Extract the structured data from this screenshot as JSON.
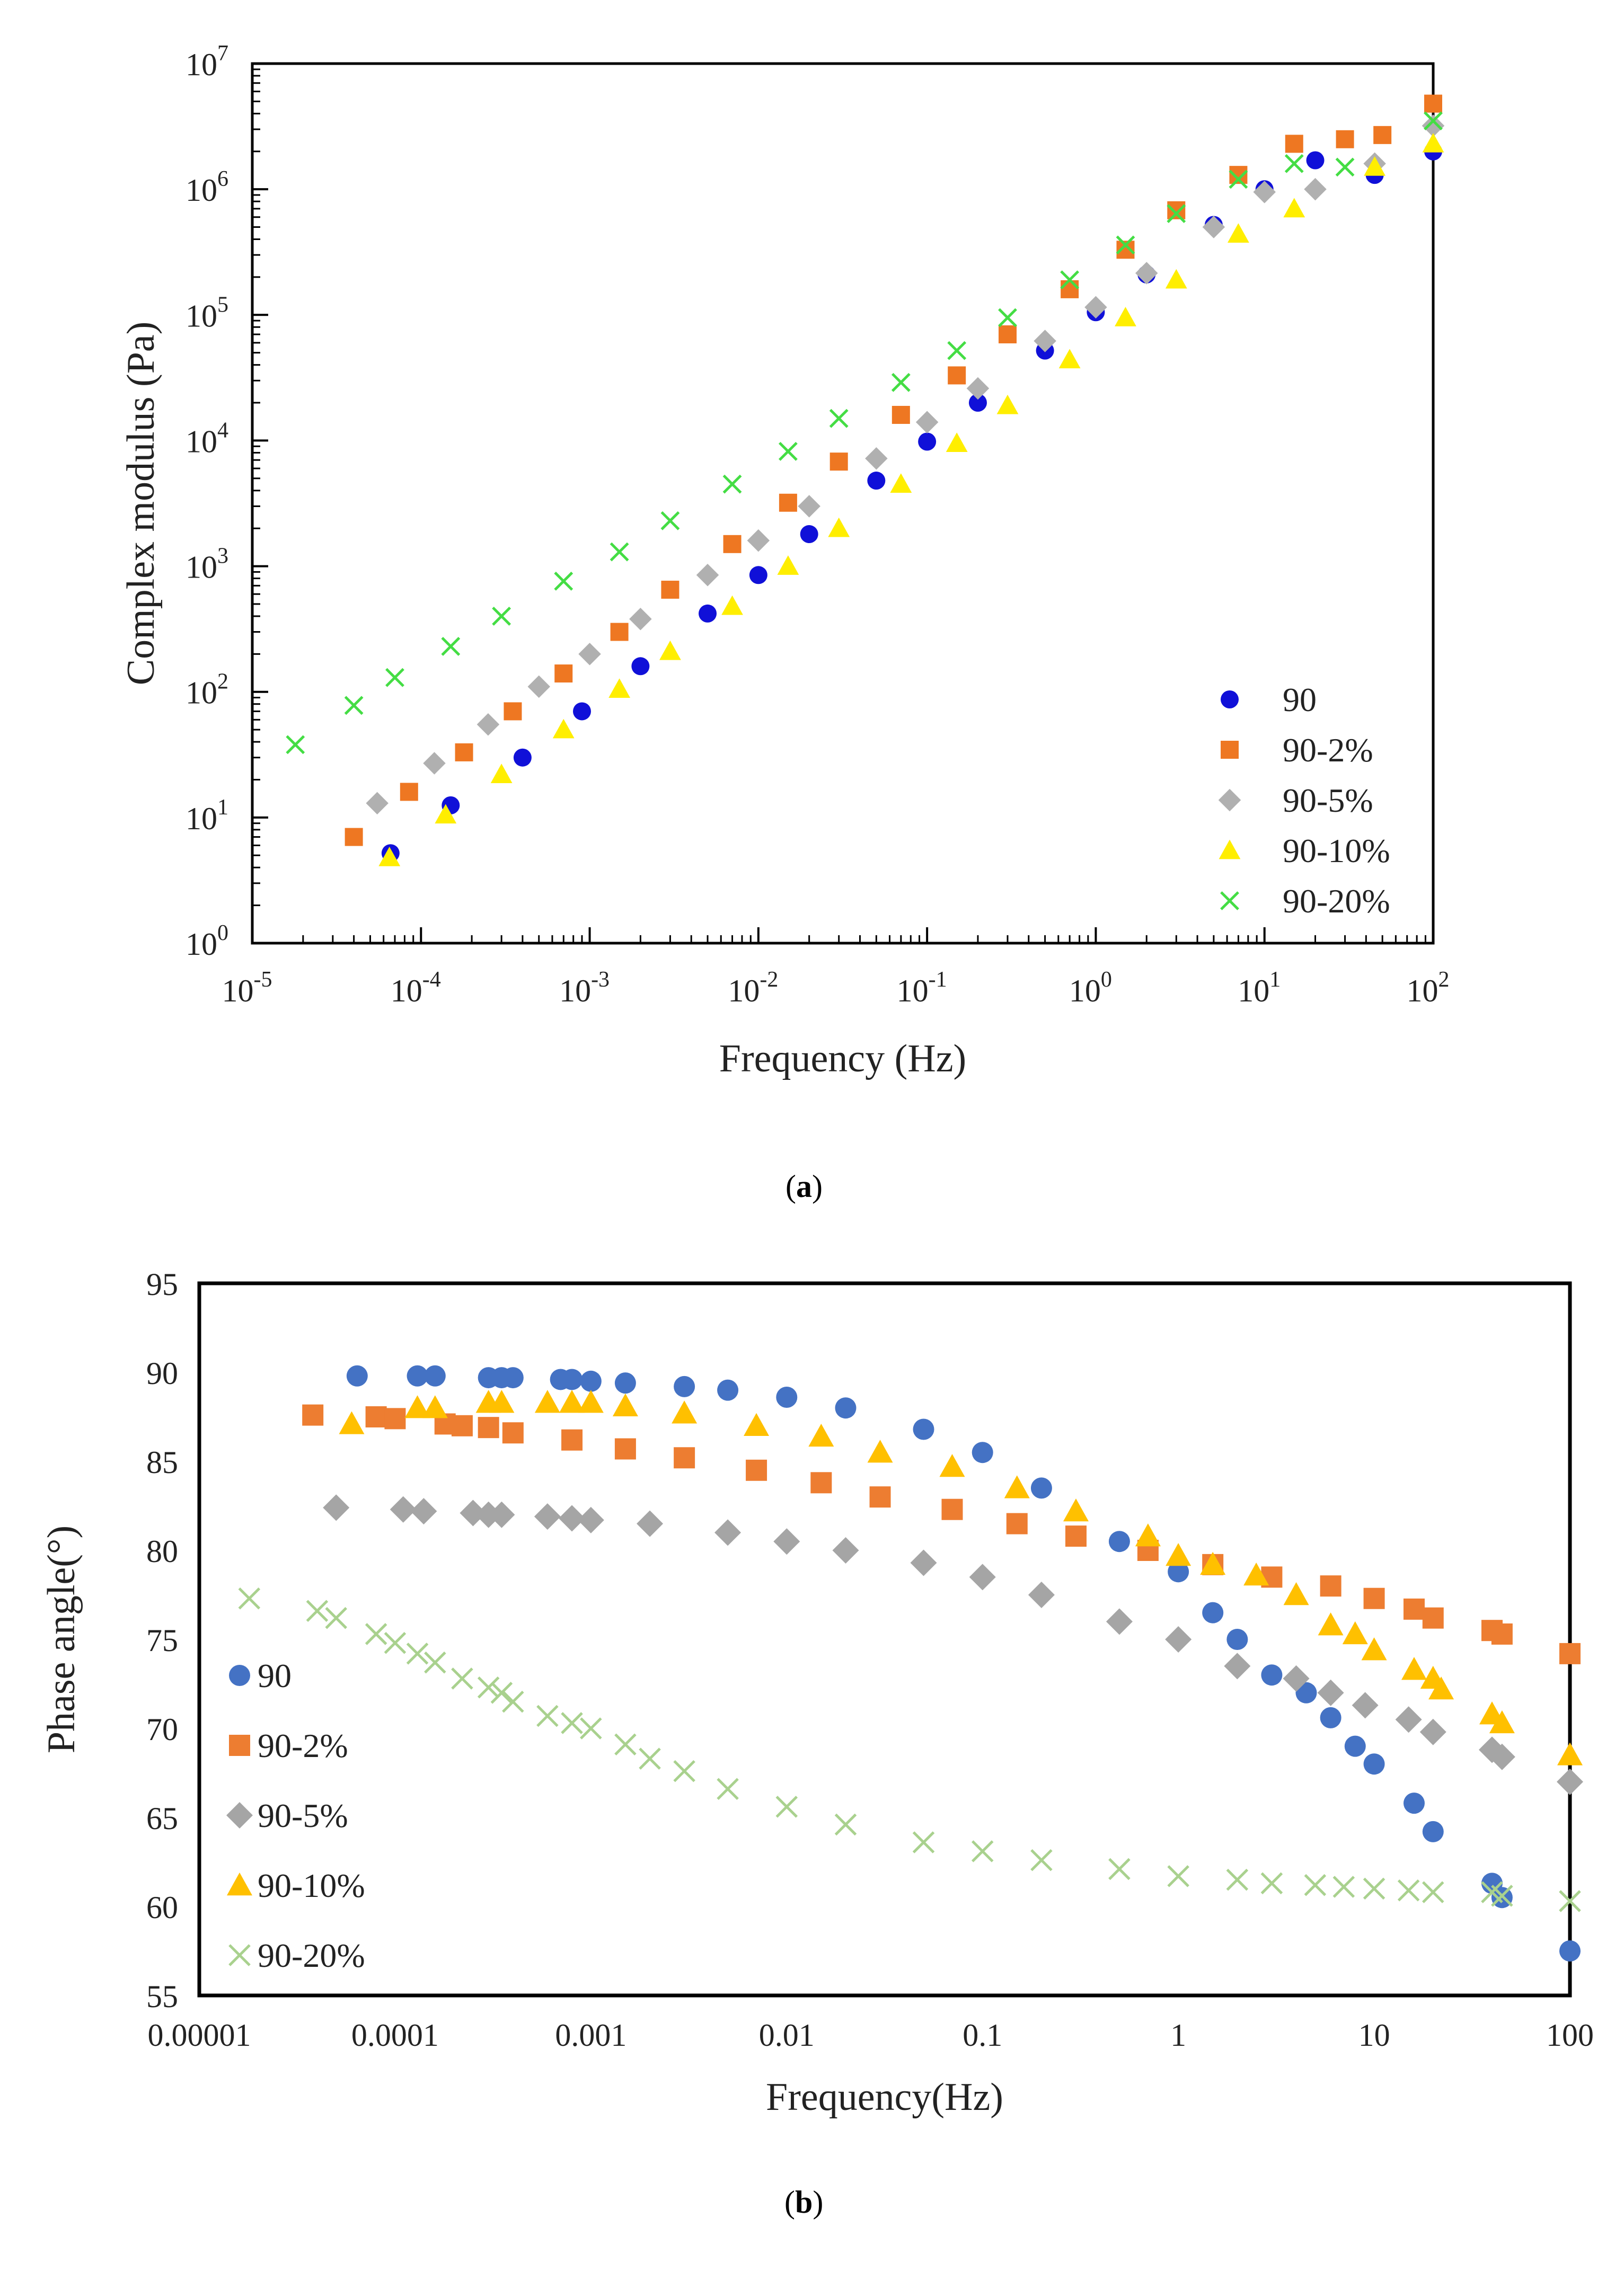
{
  "figure": {
    "caption_a": "a",
    "caption_b": "b"
  },
  "chart_data": [
    {
      "id": "a",
      "type": "scatter",
      "xlabel": "Frequency (Hz)",
      "ylabel": "Complex modulus (Pa)",
      "xscale": "log",
      "yscale": "log",
      "xlim": [
        1e-05,
        100
      ],
      "ylim": [
        1,
        10000000.0
      ],
      "x_ticks": [
        1e-05,
        0.0001,
        0.001,
        0.01,
        0.1,
        1,
        10,
        100
      ],
      "x_tick_labels": [
        [
          "10",
          "-5"
        ],
        [
          "10",
          "-4"
        ],
        [
          "10",
          "-3"
        ],
        [
          "10",
          "-2"
        ],
        [
          "10",
          "-1"
        ],
        [
          "10",
          "0"
        ],
        [
          "10",
          "1"
        ],
        [
          "10",
          "2"
        ]
      ],
      "y_ticks": [
        1,
        10,
        100,
        1000,
        10000,
        100000,
        1000000,
        10000000
      ],
      "y_tick_labels": [
        [
          "10",
          "0"
        ],
        [
          "10",
          "1"
        ],
        [
          "10",
          "2"
        ],
        [
          "10",
          "3"
        ],
        [
          "10",
          "4"
        ],
        [
          "10",
          "5"
        ],
        [
          "10",
          "6"
        ],
        [
          "10",
          "7"
        ]
      ],
      "grid": false,
      "legend": "bottom-right",
      "series": [
        {
          "name": "90",
          "marker": "circle",
          "color": "#1010d8",
          "x": [
            6.6e-05,
            0.00015,
            0.0004,
            0.0009,
            0.002,
            0.005,
            0.01,
            0.02,
            0.05,
            0.1,
            0.2,
            0.5,
            1,
            2,
            5,
            10,
            20,
            45,
            100
          ],
          "y": [
            5.2,
            12.5,
            30,
            70,
            160,
            420,
            850,
            1800,
            4800,
            9800,
            20000,
            52000,
            105000,
            210000,
            520000,
            1000000,
            1700000,
            1300000,
            2000000
          ]
        },
        {
          "name": "90-2%",
          "marker": "square",
          "color": "#ee7722",
          "x": [
            4e-05,
            8.5e-05,
            0.00018,
            0.00035,
            0.0007,
            0.0015,
            0.003,
            0.007,
            0.015,
            0.03,
            0.07,
            0.15,
            0.3,
            0.7,
            1.5,
            3,
            7,
            15,
            30,
            50,
            100
          ],
          "y": [
            7,
            16,
            33,
            70,
            140,
            300,
            650,
            1500,
            3200,
            6800,
            16000,
            33000,
            70000,
            160000,
            330000,
            680000,
            1300000,
            2300000,
            2500000,
            2700000,
            4800000
          ]
        },
        {
          "name": "90-5%",
          "marker": "diamond",
          "color": "#b0b0b0",
          "x": [
            5.5e-05,
            0.00012,
            0.00025,
            0.0005,
            0.001,
            0.002,
            0.005,
            0.01,
            0.02,
            0.05,
            0.1,
            0.2,
            0.5,
            1,
            2,
            5,
            10,
            20,
            45,
            100
          ],
          "y": [
            13,
            27,
            55,
            110,
            200,
            380,
            850,
            1600,
            3000,
            7200,
            14000,
            26000,
            62000,
            115000,
            215000,
            500000,
            950000,
            1000000,
            1600000,
            3200000
          ]
        },
        {
          "name": "90-10%",
          "marker": "triangle",
          "color": "#ffee00",
          "x": [
            6.5e-05,
            0.00014,
            0.0003,
            0.0007,
            0.0015,
            0.003,
            0.007,
            0.015,
            0.03,
            0.07,
            0.15,
            0.3,
            0.7,
            1.5,
            3,
            7,
            15,
            45,
            100
          ],
          "y": [
            4.8,
            10.5,
            22,
            50,
            105,
            210,
            480,
            1000,
            2000,
            4500,
            9500,
            19000,
            44000,
            95000,
            190000,
            440000,
            700000,
            1500000,
            2300000
          ]
        },
        {
          "name": "90-20%",
          "marker": "x",
          "color": "#44dd44",
          "x": [
            1.8e-05,
            4e-05,
            7e-05,
            0.00015,
            0.0003,
            0.0007,
            0.0015,
            0.003,
            0.007,
            0.015,
            0.03,
            0.07,
            0.15,
            0.3,
            0.7,
            1.5,
            3,
            7,
            15,
            30,
            100
          ],
          "y": [
            38,
            78,
            130,
            230,
            400,
            760,
            1300,
            2300,
            4500,
            8200,
            15000,
            29000,
            52000,
            95000,
            190000,
            360000,
            640000,
            1200000,
            1600000,
            1500000,
            3500000
          ]
        }
      ]
    },
    {
      "id": "b",
      "type": "scatter",
      "xlabel": "Frequency(Hz)",
      "ylabel": "Phase angle(°)",
      "xscale": "log",
      "yscale": "linear",
      "xlim": [
        1e-05,
        100
      ],
      "ylim": [
        55,
        95
      ],
      "x_ticks": [
        1e-05,
        0.0001,
        0.001,
        0.01,
        0.1,
        1,
        10,
        100
      ],
      "x_tick_labels": [
        "0.00001",
        "0.0001",
        "0.001",
        "0.01",
        "0.1",
        "1",
        "10",
        "100"
      ],
      "y_ticks": [
        55,
        60,
        65,
        70,
        75,
        80,
        85,
        90,
        95
      ],
      "y_tick_labels": [
        "55",
        "60",
        "65",
        "70",
        "75",
        "80",
        "85",
        "90",
        "95"
      ],
      "grid": false,
      "legend": "left",
      "series": [
        {
          "name": "90",
          "marker": "circle",
          "color": "#4472c4",
          "x": [
            6.4e-05,
            0.00013,
            0.00016,
            0.0003,
            0.00035,
            0.0004,
            0.0007,
            0.0008,
            0.001,
            0.0015,
            0.003,
            0.005,
            0.01,
            0.02,
            0.05,
            0.1,
            0.2,
            0.5,
            1,
            1.5,
            2,
            3,
            4.5,
            6,
            8,
            10,
            16,
            20,
            40,
            45,
            100
          ],
          "y": [
            89.8,
            89.8,
            89.8,
            89.7,
            89.7,
            89.7,
            89.6,
            89.6,
            89.5,
            89.4,
            89.2,
            89,
            88.6,
            88,
            86.8,
            85.5,
            83.5,
            80.5,
            78.8,
            76.5,
            75,
            73,
            72,
            70.6,
            69,
            68,
            65.8,
            64.2,
            61.3,
            60.5,
            57.5
          ]
        },
        {
          "name": "90-2%",
          "marker": "square",
          "color": "#ed7d31",
          "x": [
            3.8e-05,
            8e-05,
            0.0001,
            0.00018,
            0.00022,
            0.0003,
            0.0004,
            0.0008,
            0.0015,
            0.003,
            0.007,
            0.015,
            0.03,
            0.07,
            0.15,
            0.3,
            0.7,
            1.5,
            3,
            6,
            10,
            16,
            20,
            40,
            45,
            100
          ],
          "y": [
            87.6,
            87.5,
            87.4,
            87.1,
            87,
            86.9,
            86.6,
            86.2,
            85.7,
            85.2,
            84.5,
            83.8,
            83,
            82.3,
            81.5,
            80.8,
            80,
            79.2,
            78.5,
            78,
            77.3,
            76.7,
            76.2,
            75.5,
            75.3,
            74.2
          ]
        },
        {
          "name": "90-5%",
          "marker": "diamond",
          "color": "#a5a5a5",
          "x": [
            5e-05,
            0.00011,
            0.00014,
            0.00025,
            0.0003,
            0.00035,
            0.0006,
            0.0008,
            0.001,
            0.002,
            0.005,
            0.01,
            0.02,
            0.05,
            0.1,
            0.2,
            0.5,
            1,
            2,
            4,
            6,
            9,
            15,
            20,
            40,
            45,
            100
          ],
          "y": [
            82.4,
            82.3,
            82.2,
            82.1,
            82,
            82,
            81.9,
            81.8,
            81.7,
            81.5,
            81,
            80.5,
            80,
            79.3,
            78.5,
            77.5,
            76,
            75,
            73.5,
            72.8,
            72,
            71.3,
            70.5,
            69.8,
            68.8,
            68.4,
            67
          ]
        },
        {
          "name": "90-10%",
          "marker": "triangle",
          "color": "#ffc000",
          "x": [
            6e-05,
            0.00013,
            0.00016,
            0.0003,
            0.00035,
            0.0006,
            0.0008,
            0.001,
            0.0015,
            0.003,
            0.007,
            0.015,
            0.03,
            0.07,
            0.15,
            0.3,
            0.7,
            1,
            1.5,
            2.5,
            4,
            6,
            8,
            10,
            16,
            20,
            22,
            40,
            45,
            100
          ],
          "y": [
            87.1,
            88,
            88,
            88.3,
            88.3,
            88.3,
            88.3,
            88.3,
            88.1,
            87.7,
            87,
            86.4,
            85.5,
            84.7,
            83.5,
            82.2,
            80.8,
            79.7,
            79.2,
            78.6,
            77.5,
            75.8,
            75.3,
            74.4,
            73.3,
            72.8,
            72.2,
            70.8,
            70.3,
            68.5
          ]
        },
        {
          "name": "90-20%",
          "marker": "x",
          "color": "#a9d18e",
          "x": [
            1.8e-05,
            4e-05,
            5e-05,
            8e-05,
            0.0001,
            0.00013,
            0.00016,
            0.00022,
            0.0003,
            0.00035,
            0.0004,
            0.0006,
            0.0008,
            0.001,
            0.0015,
            0.002,
            0.003,
            0.005,
            0.01,
            0.02,
            0.05,
            0.1,
            0.2,
            0.5,
            1,
            2,
            3,
            5,
            7,
            10,
            15,
            20,
            40,
            45,
            100
          ],
          "y": [
            77.3,
            76.6,
            76.2,
            75.3,
            74.8,
            74.2,
            73.7,
            72.8,
            72.3,
            72,
            71.5,
            70.7,
            70.3,
            70,
            69.1,
            68.3,
            67.6,
            66.6,
            65.6,
            64.6,
            63.6,
            63.1,
            62.6,
            62.1,
            61.7,
            61.5,
            61.3,
            61.2,
            61.1,
            61,
            60.9,
            60.8,
            60.8,
            60.6,
            60.3
          ]
        }
      ]
    }
  ]
}
